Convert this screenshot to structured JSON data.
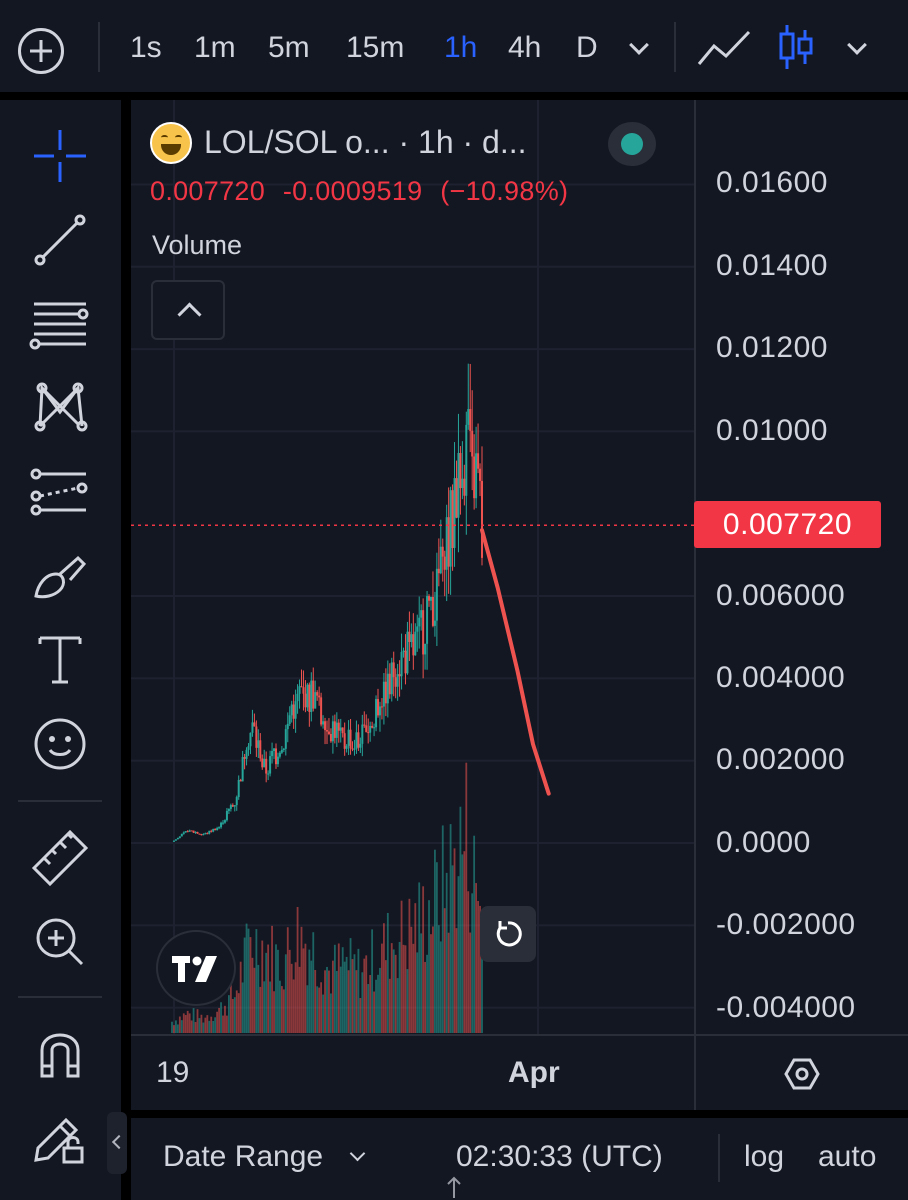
{
  "toolbar": {
    "timeframes": [
      "1s",
      "1m",
      "5m",
      "15m",
      "1h",
      "4h",
      "D"
    ],
    "active_timeframe": "1h"
  },
  "legend": {
    "title": "LOL/SOL o... · 1h · d...",
    "last_price": "0.007720",
    "change": "-0.0009519",
    "change_pct": "(−10.98%)",
    "volume_label": "Volume"
  },
  "price_axis": {
    "labels": [
      "0.01600",
      "0.01400",
      "0.01200",
      "0.01000",
      "0.006000",
      "0.004000",
      "0.002000",
      "0.0000",
      "-0.002000",
      "-0.004000"
    ],
    "current_price_tag": "0.007720"
  },
  "time_axis": {
    "labels": [
      "19",
      "Apr"
    ]
  },
  "bottom_bar": {
    "date_range": "Date Range",
    "clock": "02:30:33 (UTC)",
    "log": "log",
    "auto": "auto"
  },
  "colors": {
    "background": "#131722",
    "up": "#26a69a",
    "down": "#ef5350",
    "price_line": "#f23645",
    "accent": "#2962ff"
  },
  "chart_data": {
    "type": "line",
    "title": "LOL/SOL",
    "interval": "1h",
    "description": "Hourly candlestick price series with volume histogram and a hand-drawn red projection line sloping down",
    "series": [
      {
        "name": "LOL/SOL",
        "x": [
          0,
          4,
          8,
          12,
          16,
          20,
          24,
          28,
          32,
          36,
          40,
          44,
          48,
          52,
          56,
          60,
          64,
          68,
          72,
          75,
          77,
          79
        ],
        "values": [
          3e-05,
          0.0003,
          0.0002,
          0.0004,
          0.001,
          0.0028,
          0.0018,
          0.0024,
          0.0034,
          0.0036,
          0.0028,
          0.0025,
          0.0026,
          0.0032,
          0.0042,
          0.0046,
          0.0052,
          0.0062,
          0.0082,
          0.0098,
          0.0088,
          0.00772
        ]
      },
      {
        "name": "Drawn projection",
        "x": [
          79,
          83,
          88,
          92,
          96
        ],
        "values": [
          0.0076,
          0.0062,
          0.0042,
          0.0024,
          0.0012
        ]
      }
    ],
    "volume": [
      0.3,
      0.5,
      0.4,
      0.6,
      1.0,
      2.4,
      2.2,
      1.8,
      2.6,
      2.2,
      1.6,
      1.8,
      1.6,
      2.0,
      2.4,
      2.6,
      3.0,
      3.6,
      4.4,
      5.2,
      4.0,
      3.2
    ],
    "ylim": [
      -0.0048,
      0.0172
    ],
    "last_price": 0.00772,
    "x_ticks": [
      "19",
      "Apr"
    ]
  }
}
